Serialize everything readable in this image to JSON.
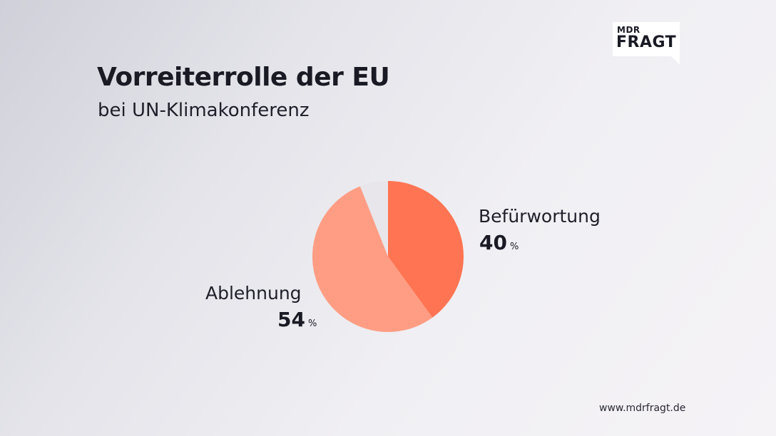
{
  "header": {
    "title": "Vorreiterrolle der EU",
    "subtitle": "bei UN-Klimakonferenz"
  },
  "logo": {
    "top": "MDR",
    "main": "FRAGT"
  },
  "footer": {
    "url": "www.mdrfragt.de"
  },
  "chart_data": {
    "type": "pie",
    "title": "Vorreiterrolle der EU",
    "subtitle": "bei UN-Klimakonferenz",
    "slices": [
      {
        "label": "Befürwortung",
        "value": 40,
        "value_text": "40",
        "unit": "%",
        "color": "#ff7452"
      },
      {
        "label": "Ablehnung",
        "value": 54,
        "value_text": "54",
        "unit": "%",
        "color": "#ff9d84"
      },
      {
        "label": "",
        "value": 6,
        "color": "#e8e6ea"
      }
    ]
  }
}
